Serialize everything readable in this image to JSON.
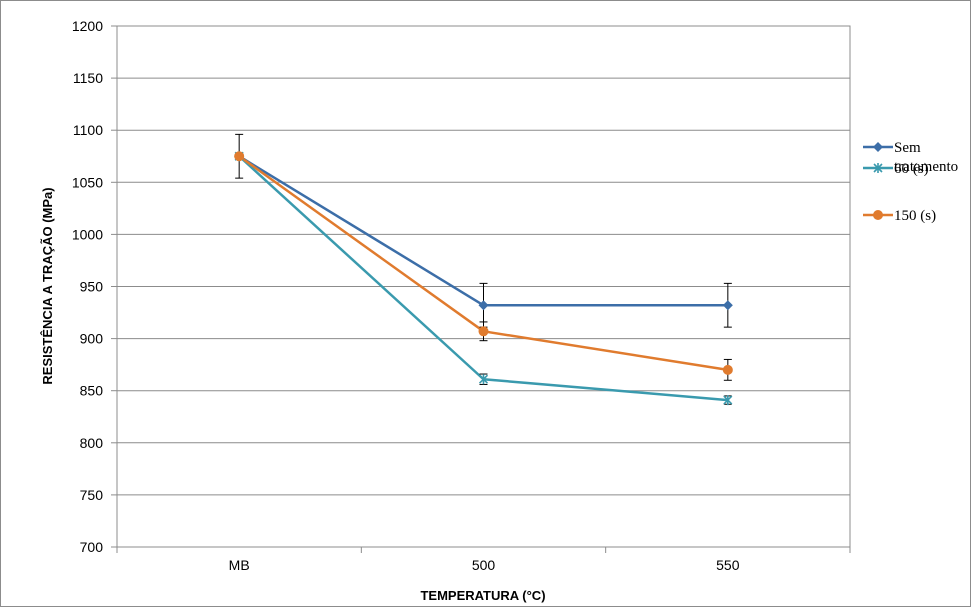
{
  "chart_data": {
    "type": "line",
    "categories": [
      "MB",
      "500",
      "550"
    ],
    "xlabel": "TEMPERATURA (°C)",
    "ylabel": "RESISTÊNCIA A TRAÇÃO (MPa)",
    "ylim": [
      700,
      1200
    ],
    "yticks": [
      700,
      750,
      800,
      850,
      900,
      950,
      1000,
      1050,
      1100,
      1150,
      1200
    ],
    "grid": true,
    "legend_position": "right",
    "series": [
      {
        "name": "Sem tratamento",
        "name_lines": [
          "Sem",
          "tratamento"
        ],
        "color": "#3C6EA8",
        "marker": "diamond",
        "values": [
          1075,
          932,
          932
        ],
        "errors": [
          21,
          21,
          21
        ]
      },
      {
        "name": "60 (s)",
        "name_lines": [
          "60 (s)"
        ],
        "color": "#3A9AAE",
        "marker": "star",
        "values": [
          1075,
          861,
          841
        ],
        "errors": [
          0,
          5,
          4
        ]
      },
      {
        "name": "150 (s)",
        "name_lines": [
          "150 (s)"
        ],
        "color": "#E07B2E",
        "marker": "circle",
        "values": [
          1075,
          907,
          870
        ],
        "errors": [
          0,
          9,
          10
        ]
      }
    ]
  }
}
